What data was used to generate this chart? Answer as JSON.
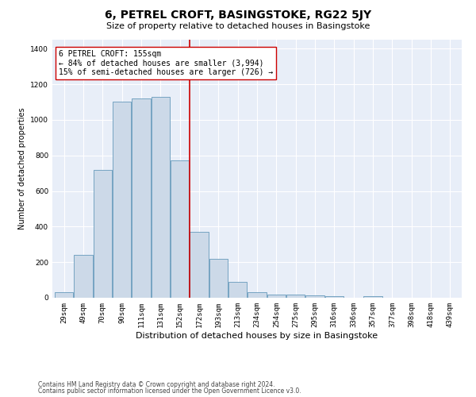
{
  "title": "6, PETREL CROFT, BASINGSTOKE, RG22 5JY",
  "subtitle": "Size of property relative to detached houses in Basingstoke",
  "xlabel": "Distribution of detached houses by size in Basingstoke",
  "ylabel": "Number of detached properties",
  "categories": [
    "29sqm",
    "49sqm",
    "70sqm",
    "90sqm",
    "111sqm",
    "131sqm",
    "152sqm",
    "172sqm",
    "193sqm",
    "213sqm",
    "234sqm",
    "254sqm",
    "275sqm",
    "295sqm",
    "316sqm",
    "336sqm",
    "357sqm",
    "377sqm",
    "398sqm",
    "418sqm",
    "439sqm"
  ],
  "values": [
    30,
    240,
    720,
    1100,
    1120,
    1130,
    770,
    370,
    220,
    90,
    30,
    20,
    20,
    15,
    10,
    0,
    8,
    0,
    0,
    0,
    0
  ],
  "bar_color": "#ccd9e8",
  "bar_edge_color": "#6699bb",
  "vline_x": 6.5,
  "vline_color": "#cc0000",
  "annotation_text": "6 PETREL CROFT: 155sqm\n← 84% of detached houses are smaller (3,994)\n15% of semi-detached houses are larger (726) →",
  "annotation_box_color": "#ffffff",
  "annotation_edge_color": "#cc0000",
  "ylim": [
    0,
    1450
  ],
  "yticks": [
    0,
    200,
    400,
    600,
    800,
    1000,
    1200,
    1400
  ],
  "plot_background": "#e8eef8",
  "footer_line1": "Contains HM Land Registry data © Crown copyright and database right 2024.",
  "footer_line2": "Contains public sector information licensed under the Open Government Licence v3.0.",
  "grid_color": "#ffffff",
  "title_fontsize": 10,
  "subtitle_fontsize": 8,
  "xlabel_fontsize": 8,
  "ylabel_fontsize": 7,
  "tick_fontsize": 6.5,
  "annotation_fontsize": 7,
  "footer_fontsize": 5.5
}
